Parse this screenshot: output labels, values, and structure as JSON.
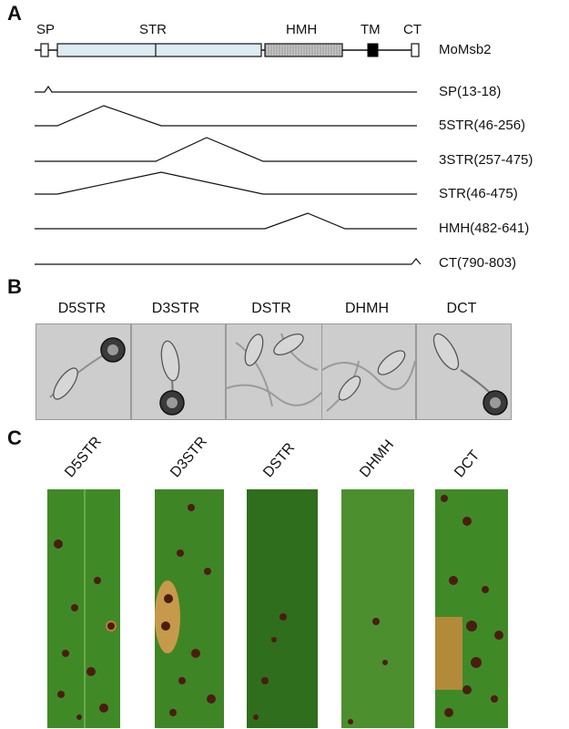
{
  "panel_a": {
    "letter": "A",
    "domain_labels": {
      "sp": "SP",
      "str": "STR",
      "hmh": "HMH",
      "tm": "TM",
      "ct": "CT"
    },
    "protein_name": "MoMsb2",
    "constructs": [
      {
        "label": "SP(13-18)"
      },
      {
        "label": "5STR(46-256)"
      },
      {
        "label": "3STR(257-475)"
      },
      {
        "label": "STR(46-475)"
      },
      {
        "label": "HMH(482-641)"
      },
      {
        "label": "CT(790-803)"
      }
    ]
  },
  "panel_b": {
    "letter": "B",
    "images": [
      {
        "label": "D5STR"
      },
      {
        "label": "D3STR"
      },
      {
        "label": "DSTR"
      },
      {
        "label": "DHMH"
      },
      {
        "label": "DCT"
      }
    ]
  },
  "panel_c": {
    "letter": "C",
    "leaves": [
      {
        "label": "D5STR"
      },
      {
        "label": "D3STR"
      },
      {
        "label": "DSTR"
      },
      {
        "label": "DHMH"
      },
      {
        "label": "DCT"
      }
    ]
  },
  "colors": {
    "str_fill": "#dcecf0",
    "hmh_fill": "#b9b9b9",
    "tm_fill": "#000000",
    "leaf_green": "#3f8a27",
    "lesion": "#4a1d12"
  }
}
